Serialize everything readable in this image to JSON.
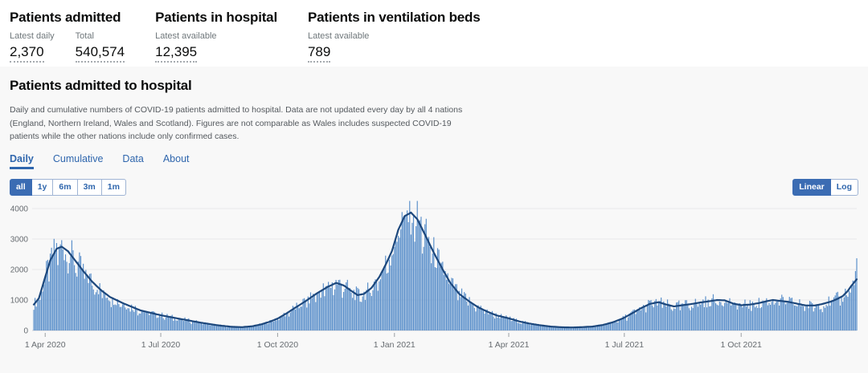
{
  "colors": {
    "accent_blue": "#3b6cb3",
    "tab_blue": "#2f66ad",
    "bar_fill": "#5d91cb",
    "trend_line": "#1c477c",
    "panel_bg": "#f8f8f8",
    "grid_line": "#e7e8ea",
    "axis_text": "#666b70",
    "muted_text": "#6f777b",
    "heading_text": "#0b0c0c"
  },
  "summary": {
    "cards": [
      {
        "title": "Patients admitted",
        "stats": [
          {
            "label": "Latest daily",
            "value": "2,370"
          },
          {
            "label": "Total",
            "value": "540,574"
          }
        ]
      },
      {
        "title": "Patients in hospital",
        "stats": [
          {
            "label": "Latest available",
            "value": "12,395"
          }
        ]
      },
      {
        "title": "Patients in ventilation beds",
        "stats": [
          {
            "label": "Latest available",
            "value": "789"
          }
        ]
      }
    ]
  },
  "panel": {
    "title": "Patients admitted to hospital",
    "description": "Daily and cumulative numbers of COVID-19 patients admitted to hospital. Data are not updated every day by all 4 nations (England, Northern Ireland, Wales and Scotland). Figures are not comparable as Wales includes suspected COVID-19 patients while the other nations include only confirmed cases.",
    "tabs": [
      {
        "label": "Daily",
        "active": true
      },
      {
        "label": "Cumulative",
        "active": false
      },
      {
        "label": "Data",
        "active": false
      },
      {
        "label": "About",
        "active": false
      }
    ],
    "range_buttons": [
      {
        "label": "all",
        "active": true
      },
      {
        "label": "1y",
        "active": false
      },
      {
        "label": "6m",
        "active": false
      },
      {
        "label": "3m",
        "active": false
      },
      {
        "label": "1m",
        "active": false
      }
    ],
    "scale_buttons": [
      {
        "label": "Linear",
        "active": true
      },
      {
        "label": "Log",
        "active": false
      }
    ]
  },
  "chart_data": {
    "type": "bar",
    "title": "Patients admitted to hospital (daily)",
    "series": [
      {
        "name": "Daily patients admitted",
        "style": "bar"
      },
      {
        "name": "7-day rolling average",
        "style": "line"
      }
    ],
    "xlabel": "",
    "ylabel": "",
    "ylim": [
      0,
      4000
    ],
    "y_ticks": [
      0,
      1000,
      2000,
      3000,
      4000
    ],
    "grid": "horizontal",
    "legend": "none",
    "x_start_date": "2020-03-23",
    "x_span_days": 648,
    "x_ticks": [
      {
        "label": "1 Apr 2020",
        "day": 9
      },
      {
        "label": "1 Jul 2020",
        "day": 100
      },
      {
        "label": "1 Oct 2020",
        "day": 192
      },
      {
        "label": "1 Jan 2021",
        "day": 284
      },
      {
        "label": "1 Apr 2021",
        "day": 374
      },
      {
        "label": "1 Jul 2021",
        "day": 465
      },
      {
        "label": "1 Oct 2021",
        "day": 557
      }
    ],
    "trend_points": [
      [
        0,
        850
      ],
      [
        4,
        1050
      ],
      [
        9,
        1750
      ],
      [
        13,
        2300
      ],
      [
        18,
        2680
      ],
      [
        22,
        2750
      ],
      [
        27,
        2600
      ],
      [
        32,
        2330
      ],
      [
        39,
        1950
      ],
      [
        46,
        1600
      ],
      [
        53,
        1320
      ],
      [
        60,
        1100
      ],
      [
        70,
        900
      ],
      [
        84,
        660
      ],
      [
        100,
        500
      ],
      [
        114,
        390
      ],
      [
        131,
        260
      ],
      [
        145,
        170
      ],
      [
        156,
        120
      ],
      [
        164,
        110
      ],
      [
        172,
        140
      ],
      [
        179,
        200
      ],
      [
        186,
        290
      ],
      [
        192,
        390
      ],
      [
        199,
        560
      ],
      [
        206,
        750
      ],
      [
        214,
        960
      ],
      [
        223,
        1220
      ],
      [
        231,
        1420
      ],
      [
        238,
        1560
      ],
      [
        244,
        1480
      ],
      [
        250,
        1300
      ],
      [
        255,
        1160
      ],
      [
        260,
        1200
      ],
      [
        266,
        1400
      ],
      [
        272,
        1750
      ],
      [
        277,
        2150
      ],
      [
        282,
        2600
      ],
      [
        287,
        3300
      ],
      [
        292,
        3750
      ],
      [
        297,
        3870
      ],
      [
        302,
        3650
      ],
      [
        308,
        3150
      ],
      [
        315,
        2550
      ],
      [
        322,
        2000
      ],
      [
        328,
        1560
      ],
      [
        335,
        1200
      ],
      [
        343,
        950
      ],
      [
        350,
        760
      ],
      [
        357,
        620
      ],
      [
        364,
        500
      ],
      [
        374,
        400
      ],
      [
        382,
        300
      ],
      [
        390,
        230
      ],
      [
        399,
        170
      ],
      [
        407,
        130
      ],
      [
        416,
        105
      ],
      [
        424,
        100
      ],
      [
        432,
        110
      ],
      [
        440,
        130
      ],
      [
        448,
        180
      ],
      [
        456,
        270
      ],
      [
        464,
        400
      ],
      [
        471,
        560
      ],
      [
        478,
        730
      ],
      [
        485,
        870
      ],
      [
        492,
        930
      ],
      [
        498,
        850
      ],
      [
        504,
        790
      ],
      [
        511,
        830
      ],
      [
        518,
        870
      ],
      [
        525,
        920
      ],
      [
        532,
        960
      ],
      [
        538,
        1000
      ],
      [
        544,
        990
      ],
      [
        551,
        880
      ],
      [
        557,
        830
      ],
      [
        564,
        850
      ],
      [
        571,
        900
      ],
      [
        577,
        960
      ],
      [
        582,
        1000
      ],
      [
        588,
        970
      ],
      [
        594,
        940
      ],
      [
        601,
        880
      ],
      [
        608,
        820
      ],
      [
        615,
        820
      ],
      [
        621,
        870
      ],
      [
        627,
        940
      ],
      [
        632,
        1020
      ],
      [
        637,
        1130
      ],
      [
        641,
        1300
      ],
      [
        644,
        1480
      ],
      [
        648,
        1680
      ]
    ],
    "last_daily_value": 2370,
    "max_bar_value": 4250
  }
}
